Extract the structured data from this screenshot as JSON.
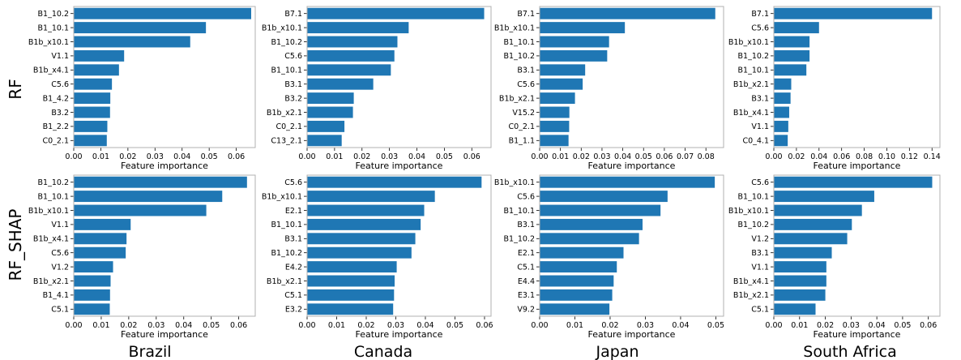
{
  "row_labels": [
    "RF",
    "RF_SHAP"
  ],
  "col_labels": [
    "Brazil",
    "Canada",
    "Japan",
    "South Africa"
  ],
  "chart_data": [
    {
      "type": "bar",
      "orientation": "horizontal",
      "row": "RF",
      "country": "Brazil",
      "xlabel": "Feature importance",
      "xlim": [
        0,
        0.067
      ],
      "xticks": [
        "0.00",
        "0.01",
        "0.02",
        "0.03",
        "0.04",
        "0.05",
        "0.06"
      ],
      "categories": [
        "B1_10.2",
        "B1_10.1",
        "B1b_x10.1",
        "V1.1",
        "B1b_x4.1",
        "C5.6",
        "B1_4.2",
        "B3.2",
        "B1_2.2",
        "C0_2.1"
      ],
      "values": [
        0.0655,
        0.0488,
        0.043,
        0.0186,
        0.0167,
        0.0141,
        0.0135,
        0.0134,
        0.0124,
        0.0122
      ]
    },
    {
      "type": "bar",
      "orientation": "horizontal",
      "row": "RF",
      "country": "Canada",
      "xlabel": "Feature importance",
      "xlim": [
        0,
        0.067
      ],
      "xticks": [
        "0.00",
        "0.01",
        "0.02",
        "0.03",
        "0.04",
        "0.05",
        "0.06"
      ],
      "categories": [
        "B7.1",
        "B1b_x10.1",
        "B1_10.2",
        "C5.6",
        "B1_10.1",
        "B3.1",
        "B3.2",
        "B1b_x2.1",
        "C0_2.1",
        "C13_2.1"
      ],
      "values": [
        0.0645,
        0.037,
        0.0329,
        0.0318,
        0.0305,
        0.0241,
        0.017,
        0.0167,
        0.0136,
        0.0126
      ]
    },
    {
      "type": "bar",
      "orientation": "horizontal",
      "row": "RF",
      "country": "Japan",
      "xlabel": "Feature importance",
      "xlim": [
        0,
        0.0885
      ],
      "xticks": [
        "0.00",
        "0.01",
        "0.02",
        "0.03",
        "0.04",
        "0.05",
        "0.06",
        "0.07",
        "0.08"
      ],
      "categories": [
        "B7.1",
        "B1b_x10.1",
        "B1_10.1",
        "B1_10.2",
        "B3.1",
        "C5.6",
        "B1b_x2.1",
        "V15.2",
        "C0_2.1",
        "B1_1.1"
      ],
      "values": [
        0.0845,
        0.041,
        0.0334,
        0.0325,
        0.0219,
        0.0207,
        0.017,
        0.0143,
        0.0142,
        0.0139
      ]
    },
    {
      "type": "bar",
      "orientation": "horizontal",
      "row": "RF",
      "country": "South Africa",
      "xlabel": "Feature importance",
      "xlim": [
        0,
        0.147
      ],
      "xticks": [
        "0.00",
        "0.02",
        "0.04",
        "0.06",
        "0.08",
        "0.10",
        "0.12",
        "0.14"
      ],
      "categories": [
        "B7.1",
        "C5.6",
        "B1b_x10.1",
        "B1_10.2",
        "B1_10.1",
        "B1b_x2.1",
        "B3.1",
        "B1b_x4.1",
        "V1.1",
        "C0_4.1"
      ],
      "values": [
        0.14,
        0.04,
        0.0316,
        0.0316,
        0.0288,
        0.0154,
        0.0148,
        0.0136,
        0.0128,
        0.0123
      ]
    },
    {
      "type": "bar",
      "orientation": "horizontal",
      "row": "RF_SHAP",
      "country": "Brazil",
      "xlabel": "Feature importance",
      "xlim": [
        0,
        0.066
      ],
      "xticks": [
        "0.00",
        "0.01",
        "0.02",
        "0.03",
        "0.04",
        "0.05",
        "0.06"
      ],
      "categories": [
        "B1_10.2",
        "B1_10.1",
        "B1b_x10.1",
        "V1.1",
        "B1b_x4.1",
        "C5.6",
        "V1.2",
        "B1b_x2.1",
        "B1_4.1",
        "C5.1"
      ],
      "values": [
        0.063,
        0.054,
        0.0482,
        0.0207,
        0.0192,
        0.0189,
        0.0143,
        0.0134,
        0.0132,
        0.0131
      ]
    },
    {
      "type": "bar",
      "orientation": "horizontal",
      "row": "RF_SHAP",
      "country": "Canada",
      "xlabel": "Feature importance",
      "xlim": [
        0,
        0.0622
      ],
      "xticks": [
        "0.00",
        "0.01",
        "0.02",
        "0.03",
        "0.04",
        "0.05",
        "0.06"
      ],
      "categories": [
        "C5.6",
        "B1b_x10.1",
        "E2.1",
        "B1_10.1",
        "B3.1",
        "B1_10.2",
        "E4.2",
        "B1b_x2.1",
        "C5.1",
        "E3.2"
      ],
      "values": [
        0.059,
        0.0432,
        0.0396,
        0.0384,
        0.0366,
        0.0353,
        0.0303,
        0.0296,
        0.0294,
        0.0291
      ]
    },
    {
      "type": "bar",
      "orientation": "horizontal",
      "row": "RF_SHAP",
      "country": "Japan",
      "xlabel": "Feature importance",
      "xlim": [
        0,
        0.0522
      ],
      "xticks": [
        "0.00",
        "0.01",
        "0.02",
        "0.03",
        "0.04",
        "0.05"
      ],
      "categories": [
        "B1b_x10.1",
        "C5.6",
        "B1_10.1",
        "B3.1",
        "B1_10.2",
        "E2.1",
        "C5.1",
        "E4.4",
        "E3.1",
        "V9.2"
      ],
      "values": [
        0.0497,
        0.0363,
        0.0343,
        0.0292,
        0.0282,
        0.0238,
        0.0219,
        0.021,
        0.0206,
        0.0198
      ]
    },
    {
      "type": "bar",
      "orientation": "horizontal",
      "row": "RF_SHAP",
      "country": "South Africa",
      "xlabel": "Feature importance",
      "xlim": [
        0,
        0.0645
      ],
      "xticks": [
        "0.00",
        "0.01",
        "0.02",
        "0.03",
        "0.04",
        "0.05",
        "0.06"
      ],
      "categories": [
        "C5.6",
        "B1_10.1",
        "B1b_x10.1",
        "B1_10.2",
        "V1.2",
        "B3.1",
        "V1.1",
        "B1b_x4.1",
        "B1b_x2.1",
        "C5.1"
      ],
      "values": [
        0.0615,
        0.039,
        0.0342,
        0.0303,
        0.0285,
        0.0225,
        0.0204,
        0.0204,
        0.02,
        0.0162
      ]
    }
  ]
}
